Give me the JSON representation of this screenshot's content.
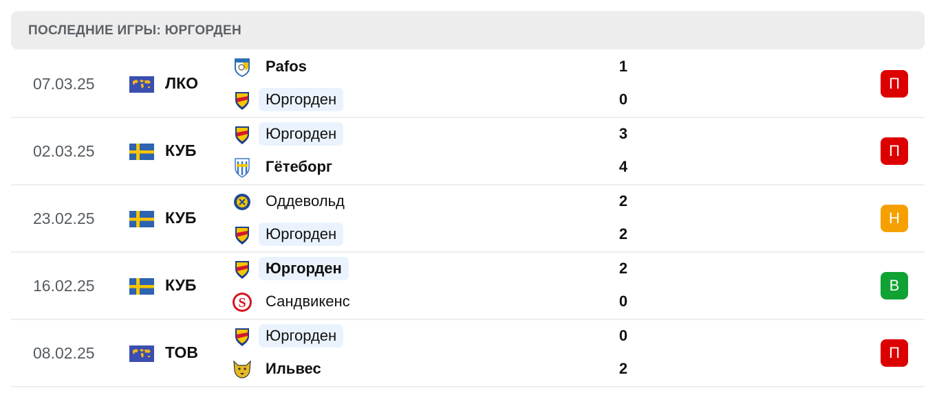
{
  "header": {
    "title": "ПОСЛЕДНИЕ ИГРЫ: ЮРГОРДЕН"
  },
  "colors": {
    "loss": "#dd0000",
    "draw": "#f5a000",
    "win": "#10a233",
    "highlight": "#eaf3fd"
  },
  "matches": [
    {
      "date": "07.03.25",
      "flag": "world-flag-icon",
      "competition": "ЛКО",
      "result": "П",
      "result_type": "loss",
      "home": {
        "name": "Pafos",
        "score": "1",
        "winner": true,
        "me": false,
        "logo": "pafos-logo"
      },
      "away": {
        "name": "Юргорден",
        "score": "0",
        "winner": false,
        "me": true,
        "logo": "djurgarden-logo"
      }
    },
    {
      "date": "02.03.25",
      "flag": "sweden-flag-icon",
      "competition": "КУБ",
      "result": "П",
      "result_type": "loss",
      "home": {
        "name": "Юргорден",
        "score": "3",
        "winner": false,
        "me": true,
        "logo": "djurgarden-logo"
      },
      "away": {
        "name": "Гётеборг",
        "score": "4",
        "winner": true,
        "me": false,
        "logo": "goteborg-logo"
      }
    },
    {
      "date": "23.02.25",
      "flag": "sweden-flag-icon",
      "competition": "КУБ",
      "result": "Н",
      "result_type": "draw",
      "home": {
        "name": "Оддевольд",
        "score": "2",
        "winner": false,
        "me": false,
        "logo": "oddevold-logo"
      },
      "away": {
        "name": "Юргорден",
        "score": "2",
        "winner": false,
        "me": true,
        "logo": "djurgarden-logo"
      }
    },
    {
      "date": "16.02.25",
      "flag": "sweden-flag-icon",
      "competition": "КУБ",
      "result": "В",
      "result_type": "win",
      "home": {
        "name": "Юргорден",
        "score": "2",
        "winner": true,
        "me": true,
        "logo": "djurgarden-logo"
      },
      "away": {
        "name": "Сандвикенс",
        "score": "0",
        "winner": false,
        "me": false,
        "logo": "sandvikens-logo"
      }
    },
    {
      "date": "08.02.25",
      "flag": "world-flag-icon",
      "competition": "ТОВ",
      "result": "П",
      "result_type": "loss",
      "home": {
        "name": "Юргорден",
        "score": "0",
        "winner": false,
        "me": true,
        "logo": "djurgarden-logo"
      },
      "away": {
        "name": "Ильвес",
        "score": "2",
        "winner": true,
        "me": false,
        "logo": "ilves-logo"
      }
    }
  ]
}
